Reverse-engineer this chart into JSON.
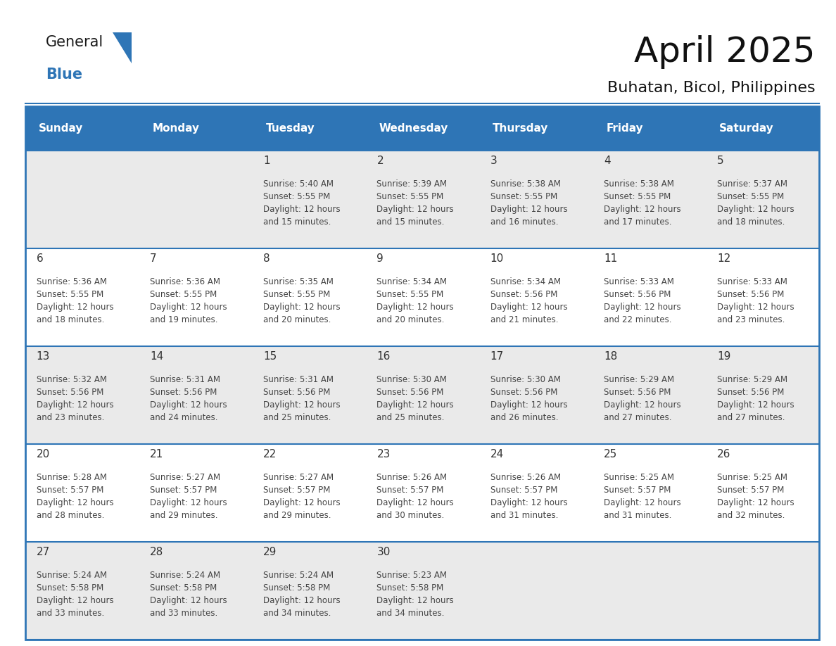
{
  "title": "April 2025",
  "subtitle": "Buhatan, Bicol, Philippines",
  "days_of_week": [
    "Sunday",
    "Monday",
    "Tuesday",
    "Wednesday",
    "Thursday",
    "Friday",
    "Saturday"
  ],
  "header_bg": "#2E75B6",
  "header_text_color": "#FFFFFF",
  "row_bg_odd": "#EAEAEA",
  "row_bg_even": "#FFFFFF",
  "border_color": "#2E75B6",
  "text_color": "#333333",
  "day_num_color": "#333333",
  "calendar_data": [
    [
      null,
      null,
      {
        "day": 1,
        "sunrise": "5:40 AM",
        "sunset": "5:55 PM",
        "daylight": "12 hours\nand 15 minutes."
      },
      {
        "day": 2,
        "sunrise": "5:39 AM",
        "sunset": "5:55 PM",
        "daylight": "12 hours\nand 15 minutes."
      },
      {
        "day": 3,
        "sunrise": "5:38 AM",
        "sunset": "5:55 PM",
        "daylight": "12 hours\nand 16 minutes."
      },
      {
        "day": 4,
        "sunrise": "5:38 AM",
        "sunset": "5:55 PM",
        "daylight": "12 hours\nand 17 minutes."
      },
      {
        "day": 5,
        "sunrise": "5:37 AM",
        "sunset": "5:55 PM",
        "daylight": "12 hours\nand 18 minutes."
      }
    ],
    [
      {
        "day": 6,
        "sunrise": "5:36 AM",
        "sunset": "5:55 PM",
        "daylight": "12 hours\nand 18 minutes."
      },
      {
        "day": 7,
        "sunrise": "5:36 AM",
        "sunset": "5:55 PM",
        "daylight": "12 hours\nand 19 minutes."
      },
      {
        "day": 8,
        "sunrise": "5:35 AM",
        "sunset": "5:55 PM",
        "daylight": "12 hours\nand 20 minutes."
      },
      {
        "day": 9,
        "sunrise": "5:34 AM",
        "sunset": "5:55 PM",
        "daylight": "12 hours\nand 20 minutes."
      },
      {
        "day": 10,
        "sunrise": "5:34 AM",
        "sunset": "5:56 PM",
        "daylight": "12 hours\nand 21 minutes."
      },
      {
        "day": 11,
        "sunrise": "5:33 AM",
        "sunset": "5:56 PM",
        "daylight": "12 hours\nand 22 minutes."
      },
      {
        "day": 12,
        "sunrise": "5:33 AM",
        "sunset": "5:56 PM",
        "daylight": "12 hours\nand 23 minutes."
      }
    ],
    [
      {
        "day": 13,
        "sunrise": "5:32 AM",
        "sunset": "5:56 PM",
        "daylight": "12 hours\nand 23 minutes."
      },
      {
        "day": 14,
        "sunrise": "5:31 AM",
        "sunset": "5:56 PM",
        "daylight": "12 hours\nand 24 minutes."
      },
      {
        "day": 15,
        "sunrise": "5:31 AM",
        "sunset": "5:56 PM",
        "daylight": "12 hours\nand 25 minutes."
      },
      {
        "day": 16,
        "sunrise": "5:30 AM",
        "sunset": "5:56 PM",
        "daylight": "12 hours\nand 25 minutes."
      },
      {
        "day": 17,
        "sunrise": "5:30 AM",
        "sunset": "5:56 PM",
        "daylight": "12 hours\nand 26 minutes."
      },
      {
        "day": 18,
        "sunrise": "5:29 AM",
        "sunset": "5:56 PM",
        "daylight": "12 hours\nand 27 minutes."
      },
      {
        "day": 19,
        "sunrise": "5:29 AM",
        "sunset": "5:56 PM",
        "daylight": "12 hours\nand 27 minutes."
      }
    ],
    [
      {
        "day": 20,
        "sunrise": "5:28 AM",
        "sunset": "5:57 PM",
        "daylight": "12 hours\nand 28 minutes."
      },
      {
        "day": 21,
        "sunrise": "5:27 AM",
        "sunset": "5:57 PM",
        "daylight": "12 hours\nand 29 minutes."
      },
      {
        "day": 22,
        "sunrise": "5:27 AM",
        "sunset": "5:57 PM",
        "daylight": "12 hours\nand 29 minutes."
      },
      {
        "day": 23,
        "sunrise": "5:26 AM",
        "sunset": "5:57 PM",
        "daylight": "12 hours\nand 30 minutes."
      },
      {
        "day": 24,
        "sunrise": "5:26 AM",
        "sunset": "5:57 PM",
        "daylight": "12 hours\nand 31 minutes."
      },
      {
        "day": 25,
        "sunrise": "5:25 AM",
        "sunset": "5:57 PM",
        "daylight": "12 hours\nand 31 minutes."
      },
      {
        "day": 26,
        "sunrise": "5:25 AM",
        "sunset": "5:57 PM",
        "daylight": "12 hours\nand 32 minutes."
      }
    ],
    [
      {
        "day": 27,
        "sunrise": "5:24 AM",
        "sunset": "5:58 PM",
        "daylight": "12 hours\nand 33 minutes."
      },
      {
        "day": 28,
        "sunrise": "5:24 AM",
        "sunset": "5:58 PM",
        "daylight": "12 hours\nand 33 minutes."
      },
      {
        "day": 29,
        "sunrise": "5:24 AM",
        "sunset": "5:58 PM",
        "daylight": "12 hours\nand 34 minutes."
      },
      {
        "day": 30,
        "sunrise": "5:23 AM",
        "sunset": "5:58 PM",
        "daylight": "12 hours\nand 34 minutes."
      },
      null,
      null,
      null
    ]
  ],
  "logo_text1": "General",
  "logo_text2": "Blue",
  "logo_text1_color": "#1a1a1a",
  "logo_text2_color": "#2E75B6",
  "logo_triangle_color": "#2E75B6",
  "title_fontsize": 36,
  "subtitle_fontsize": 16,
  "header_fontsize": 11,
  "daynum_fontsize": 11,
  "cell_fontsize": 8.5
}
